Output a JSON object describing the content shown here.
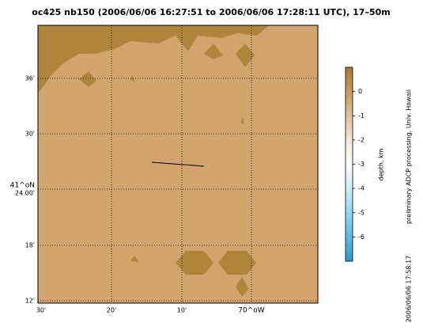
{
  "title": "oc425 nb150 (2006/06/06 16:27:51 to 2006/06/06 17:28:11 UTC), 17–50m",
  "map": {
    "lat_labels": [
      "36'",
      "30'",
      "41^oN",
      "24.00'",
      "18'",
      "12'"
    ],
    "lon_labels": [
      "30'",
      "20'",
      "10'",
      "70^oW"
    ]
  },
  "colorbar": {
    "label": "depth, km",
    "lim": [
      1,
      -7
    ],
    "ticks": [
      0,
      -1,
      -2,
      -3,
      -4,
      -5,
      -6
    ]
  },
  "side_note": "preliminary ADCP processing,  Univ. Hawaii",
  "timestamp": "2006/06/06 17:58:17"
}
